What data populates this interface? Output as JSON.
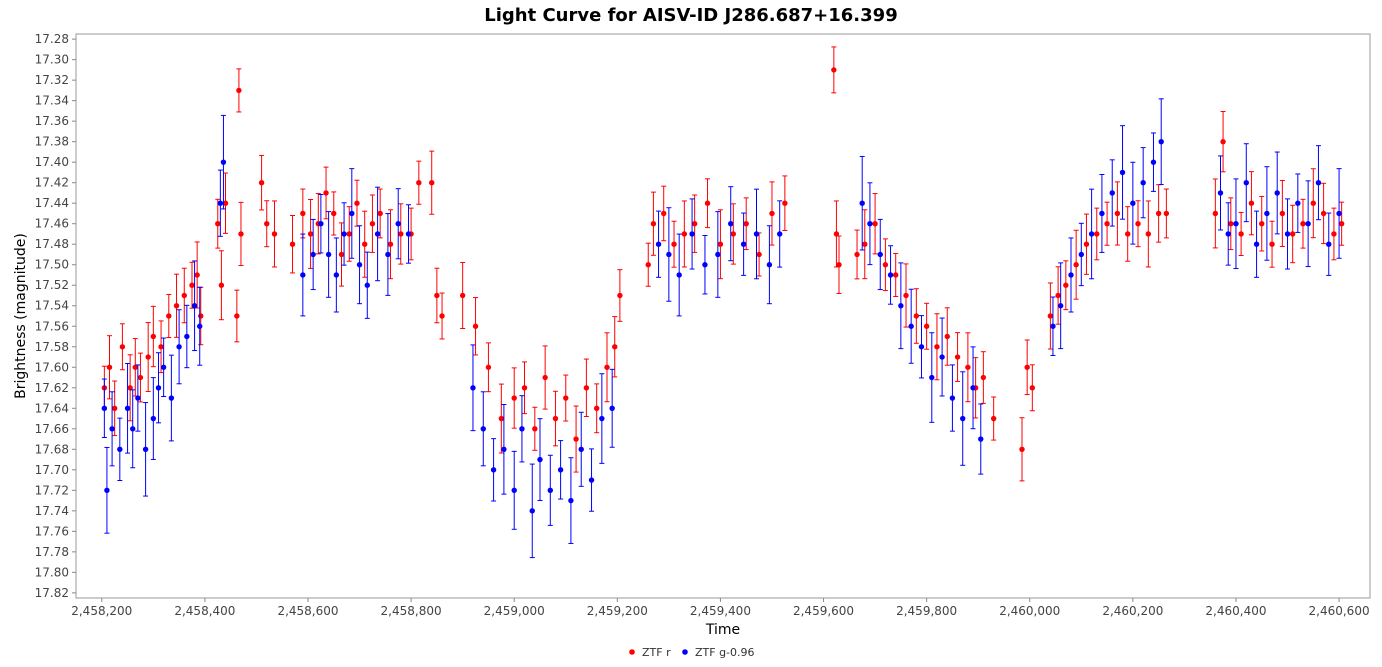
{
  "chart_data": {
    "type": "scatter",
    "title": "Light Curve for AISV-ID J286.687+16.399",
    "xlabel": "Time",
    "ylabel": "Brightness (magnitude)",
    "xlim": [
      2458150,
      2460660
    ],
    "ylim": [
      17.825,
      17.275
    ],
    "y_inverted": true,
    "x_ticks": [
      2458200,
      2458400,
      2458600,
      2458800,
      2459000,
      2459200,
      2459400,
      2459600,
      2459800,
      2460000,
      2460200,
      2460400,
      2460600
    ],
    "x_tick_labels": [
      "2,458,200",
      "2,458,400",
      "2,458,600",
      "2,458,800",
      "2,459,000",
      "2,459,200",
      "2,459,400",
      "2,459,600",
      "2,459,800",
      "2,460,000",
      "2,460,200",
      "2,460,400",
      "2,460,600"
    ],
    "y_ticks": [
      17.28,
      17.3,
      17.32,
      17.34,
      17.36,
      17.38,
      17.4,
      17.42,
      17.44,
      17.46,
      17.48,
      17.5,
      17.52,
      17.54,
      17.56,
      17.58,
      17.6,
      17.62,
      17.64,
      17.66,
      17.68,
      17.7,
      17.72,
      17.74,
      17.76,
      17.78,
      17.8,
      17.82
    ],
    "y_tick_labels": [
      "17.28",
      "17.30",
      "17.32",
      "17.34",
      "17.36",
      "17.38",
      "17.40",
      "17.42",
      "17.44",
      "17.46",
      "17.48",
      "17.50",
      "17.52",
      "17.54",
      "17.56",
      "17.58",
      "17.60",
      "17.62",
      "17.64",
      "17.66",
      "17.68",
      "17.70",
      "17.72",
      "17.74",
      "17.76",
      "17.78",
      "17.80",
      "17.82"
    ],
    "grid": false,
    "legend_position": "bottom-center",
    "series": [
      {
        "name": "ZTF r",
        "color": "#ff0000",
        "x": [
          2458205,
          2458215,
          2458225,
          2458240,
          2458255,
          2458265,
          2458275,
          2458290,
          2458300,
          2458315,
          2458330,
          2458345,
          2458360,
          2458375,
          2458385,
          2458392,
          2458425,
          2458432,
          2458440,
          2458462,
          2458466,
          2458470,
          2458510,
          2458520,
          2458535,
          2458570,
          2458590,
          2458605,
          2458620,
          2458635,
          2458650,
          2458665,
          2458680,
          2458695,
          2458710,
          2458725,
          2458740,
          2458760,
          2458780,
          2458800,
          2458815,
          2458840,
          2458850,
          2458860,
          2458900,
          2458925,
          2458950,
          2458975,
          2459000,
          2459020,
          2459040,
          2459060,
          2459080,
          2459100,
          2459120,
          2459140,
          2459160,
          2459180,
          2459195,
          2459205,
          2459260,
          2459270,
          2459290,
          2459310,
          2459330,
          2459350,
          2459375,
          2459400,
          2459425,
          2459450,
          2459475,
          2459500,
          2459525,
          2459620,
          2459625,
          2459630,
          2459665,
          2459680,
          2459700,
          2459720,
          2459740,
          2459760,
          2459780,
          2459800,
          2459820,
          2459840,
          2459860,
          2459880,
          2459895,
          2459910,
          2459930,
          2459985,
          2459995,
          2460005,
          2460040,
          2460055,
          2460070,
          2460090,
          2460110,
          2460130,
          2460150,
          2460170,
          2460190,
          2460210,
          2460230,
          2460250,
          2460265,
          2460360,
          2460375,
          2460390,
          2460410,
          2460430,
          2460450,
          2460470,
          2460490,
          2460510,
          2460530,
          2460550,
          2460570,
          2460590,
          2460605
        ],
        "y": [
          17.62,
          17.6,
          17.64,
          17.58,
          17.62,
          17.6,
          17.61,
          17.59,
          17.57,
          17.58,
          17.55,
          17.54,
          17.53,
          17.52,
          17.51,
          17.55,
          17.46,
          17.52,
          17.44,
          17.55,
          17.33,
          17.47,
          17.42,
          17.46,
          17.47,
          17.48,
          17.45,
          17.47,
          17.46,
          17.43,
          17.45,
          17.49,
          17.47,
          17.44,
          17.48,
          17.46,
          17.45,
          17.48,
          17.47,
          17.47,
          17.42,
          17.42,
          17.53,
          17.55,
          17.53,
          17.56,
          17.6,
          17.65,
          17.63,
          17.62,
          17.66,
          17.61,
          17.65,
          17.63,
          17.67,
          17.62,
          17.64,
          17.6,
          17.58,
          17.53,
          17.5,
          17.46,
          17.45,
          17.48,
          17.47,
          17.46,
          17.44,
          17.48,
          17.47,
          17.46,
          17.49,
          17.45,
          17.44,
          17.31,
          17.47,
          17.5,
          17.49,
          17.48,
          17.46,
          17.5,
          17.51,
          17.53,
          17.55,
          17.56,
          17.58,
          17.57,
          17.59,
          17.6,
          17.62,
          17.61,
          17.65,
          17.68,
          17.6,
          17.62,
          17.55,
          17.53,
          17.52,
          17.5,
          17.48,
          17.47,
          17.46,
          17.45,
          17.47,
          17.46,
          17.47,
          17.45,
          17.45,
          17.45,
          17.38,
          17.46,
          17.47,
          17.44,
          17.46,
          17.48,
          17.45,
          17.47,
          17.46,
          17.44,
          17.45,
          17.47,
          17.46
        ]
      },
      {
        "name": "ZTF g-0.96",
        "color": "#0000ff",
        "x": [
          2458205,
          2458210,
          2458220,
          2458235,
          2458250,
          2458260,
          2458270,
          2458285,
          2458300,
          2458310,
          2458320,
          2458335,
          2458350,
          2458365,
          2458380,
          2458390,
          2458430,
          2458436,
          2458590,
          2458610,
          2458625,
          2458640,
          2458655,
          2458670,
          2458685,
          2458700,
          2458715,
          2458735,
          2458755,
          2458775,
          2458795,
          2458920,
          2458940,
          2458960,
          2458980,
          2459000,
          2459015,
          2459035,
          2459050,
          2459070,
          2459090,
          2459110,
          2459130,
          2459150,
          2459170,
          2459190,
          2459280,
          2459300,
          2459320,
          2459345,
          2459370,
          2459395,
          2459420,
          2459445,
          2459470,
          2459495,
          2459515,
          2459675,
          2459690,
          2459710,
          2459730,
          2459750,
          2459770,
          2459790,
          2459810,
          2459830,
          2459850,
          2459870,
          2459890,
          2459905,
          2460045,
          2460060,
          2460080,
          2460100,
          2460120,
          2460140,
          2460160,
          2460180,
          2460200,
          2460220,
          2460240,
          2460255,
          2460370,
          2460385,
          2460400,
          2460420,
          2460440,
          2460460,
          2460480,
          2460500,
          2460520,
          2460540,
          2460560,
          2460580,
          2460600
        ],
        "y": [
          17.64,
          17.72,
          17.66,
          17.68,
          17.64,
          17.66,
          17.63,
          17.68,
          17.65,
          17.62,
          17.6,
          17.63,
          17.58,
          17.57,
          17.54,
          17.56,
          17.44,
          17.4,
          17.51,
          17.49,
          17.46,
          17.49,
          17.51,
          17.47,
          17.45,
          17.5,
          17.52,
          17.47,
          17.49,
          17.46,
          17.47,
          17.62,
          17.66,
          17.7,
          17.68,
          17.72,
          17.66,
          17.74,
          17.69,
          17.72,
          17.7,
          17.73,
          17.68,
          17.71,
          17.65,
          17.64,
          17.48,
          17.49,
          17.51,
          17.47,
          17.5,
          17.49,
          17.46,
          17.48,
          17.47,
          17.5,
          17.47,
          17.44,
          17.46,
          17.49,
          17.51,
          17.54,
          17.56,
          17.58,
          17.61,
          17.59,
          17.63,
          17.65,
          17.62,
          17.67,
          17.56,
          17.54,
          17.51,
          17.49,
          17.47,
          17.45,
          17.43,
          17.41,
          17.44,
          17.42,
          17.4,
          17.38,
          17.43,
          17.47,
          17.46,
          17.42,
          17.48,
          17.45,
          17.43,
          17.47,
          17.44,
          17.46,
          17.42,
          17.48,
          17.45
        ]
      }
    ]
  }
}
